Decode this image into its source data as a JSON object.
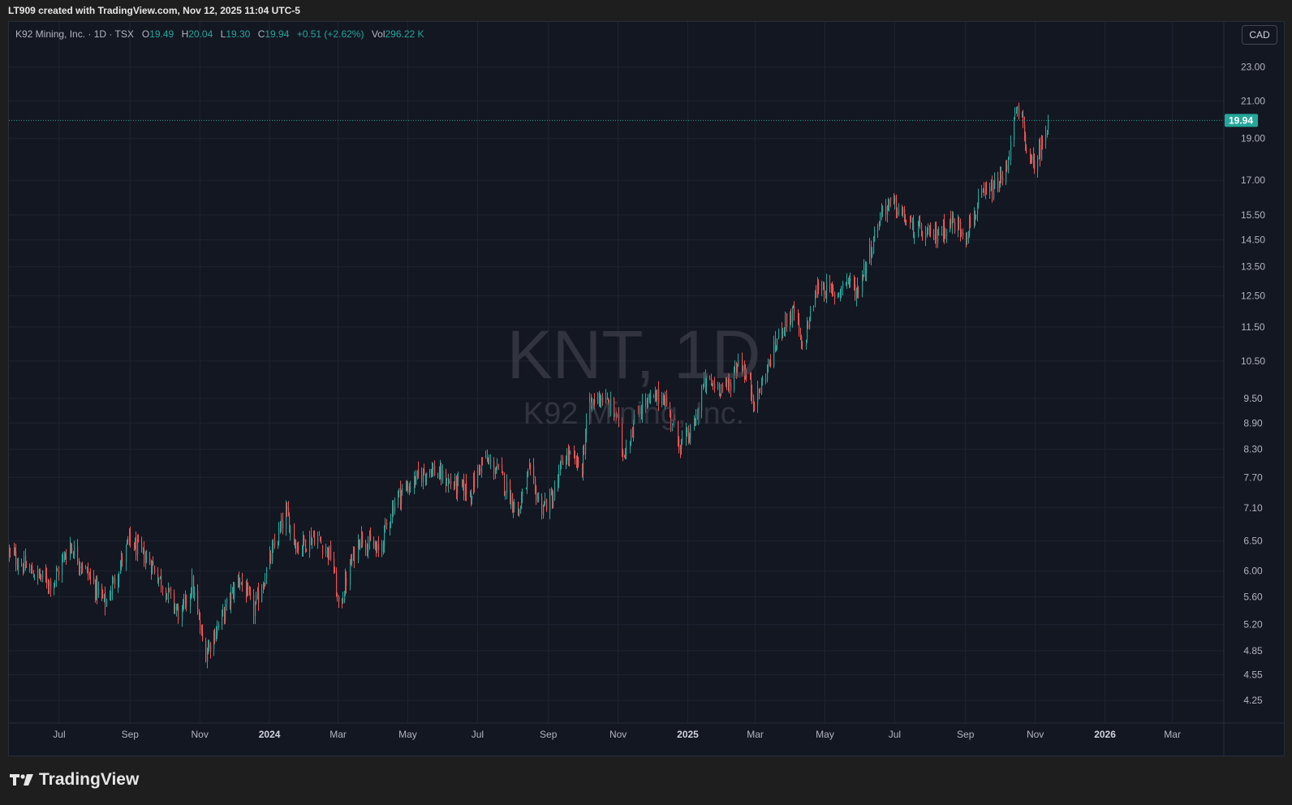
{
  "header": {
    "snapshot_line": "LT909 created with TradingView.com, Nov 12, 2025 11:04 UTC-5"
  },
  "legend": {
    "symbol_line": "K92 Mining, Inc. · 1D · TSX",
    "open_label": "O",
    "open_value": "19.49",
    "high_label": "H",
    "high_value": "20.04",
    "low_label": "L",
    "low_value": "19.30",
    "close_label": "C",
    "close_value": "19.94",
    "change": "+0.51 (+2.62%)",
    "volume_label": "Vol",
    "volume_value": "296.22 K"
  },
  "currency": "CAD",
  "watermark": {
    "main": "KNT, 1D",
    "sub": "K92 Mining, Inc."
  },
  "footer": {
    "brand": "TradingView"
  },
  "colors": {
    "up": "#26a69a",
    "down": "#ef5350",
    "background": "#131722",
    "grid": "#1f2430",
    "axis_text": "#b2b5be",
    "last_price_badge": "#26a69a"
  },
  "chart_data": {
    "type": "candlestick",
    "scale": "log",
    "y_ticks": [
      "23.00",
      "21.00",
      "19.00",
      "17.00",
      "15.50",
      "14.50",
      "13.50",
      "12.50",
      "11.50",
      "10.50",
      "9.50",
      "8.90",
      "8.30",
      "7.70",
      "7.10",
      "6.50",
      "6.00",
      "5.60",
      "5.20",
      "4.85",
      "4.55",
      "4.25"
    ],
    "x_ticks": [
      {
        "label": "Jul",
        "date": "2023-07-01"
      },
      {
        "label": "Sep",
        "date": "2023-09-01"
      },
      {
        "label": "Nov",
        "date": "2023-11-01"
      },
      {
        "label": "2024",
        "date": "2024-01-01"
      },
      {
        "label": "Mar",
        "date": "2024-03-01"
      },
      {
        "label": "May",
        "date": "2024-05-01"
      },
      {
        "label": "Jul",
        "date": "2024-07-01"
      },
      {
        "label": "Sep",
        "date": "2024-09-01"
      },
      {
        "label": "Nov",
        "date": "2024-11-01"
      },
      {
        "label": "2025",
        "date": "2025-01-01"
      },
      {
        "label": "Mar",
        "date": "2025-03-01"
      },
      {
        "label": "May",
        "date": "2025-05-01"
      },
      {
        "label": "Jul",
        "date": "2025-07-01"
      },
      {
        "label": "Sep",
        "date": "2025-09-01"
      },
      {
        "label": "Nov",
        "date": "2025-11-01"
      },
      {
        "label": "2026",
        "date": "2026-01-01"
      },
      {
        "label": "Mar",
        "date": "2026-03-01"
      }
    ],
    "last_price": "19.94",
    "x_range": [
      "2023-05-18",
      "2026-04-15"
    ],
    "y_range": [
      4.0,
      24.3
    ],
    "series_anchors": [
      {
        "date": "2023-05-18",
        "close": 6.3
      },
      {
        "date": "2023-06-05",
        "close": 6.0
      },
      {
        "date": "2023-06-25",
        "close": 5.8
      },
      {
        "date": "2023-07-10",
        "close": 6.45
      },
      {
        "date": "2023-08-10",
        "close": 5.5
      },
      {
        "date": "2023-08-31",
        "close": 6.5
      },
      {
        "date": "2023-09-20",
        "close": 6.1
      },
      {
        "date": "2023-10-15",
        "close": 5.3
      },
      {
        "date": "2023-10-25",
        "close": 5.8
      },
      {
        "date": "2023-11-05",
        "close": 4.8
      },
      {
        "date": "2023-11-20",
        "close": 5.3
      },
      {
        "date": "2023-12-05",
        "close": 5.9
      },
      {
        "date": "2023-12-18",
        "close": 5.4
      },
      {
        "date": "2024-01-05",
        "close": 6.4
      },
      {
        "date": "2024-01-15",
        "close": 7.0
      },
      {
        "date": "2024-01-25",
        "close": 6.4
      },
      {
        "date": "2024-02-10",
        "close": 6.6
      },
      {
        "date": "2024-02-25",
        "close": 6.2
      },
      {
        "date": "2024-03-01",
        "close": 5.4
      },
      {
        "date": "2024-03-10",
        "close": 6.0
      },
      {
        "date": "2024-03-20",
        "close": 6.6
      },
      {
        "date": "2024-04-05",
        "close": 6.3
      },
      {
        "date": "2024-04-20",
        "close": 7.3
      },
      {
        "date": "2024-05-05",
        "close": 7.6
      },
      {
        "date": "2024-05-20",
        "close": 7.9
      },
      {
        "date": "2024-06-05",
        "close": 7.6
      },
      {
        "date": "2024-06-25",
        "close": 7.4
      },
      {
        "date": "2024-07-05",
        "close": 8.1
      },
      {
        "date": "2024-07-20",
        "close": 7.8
      },
      {
        "date": "2024-08-05",
        "close": 7.0
      },
      {
        "date": "2024-08-15",
        "close": 7.8
      },
      {
        "date": "2024-08-25",
        "close": 7.1
      },
      {
        "date": "2024-09-05",
        "close": 7.3
      },
      {
        "date": "2024-09-15",
        "close": 8.2
      },
      {
        "date": "2024-09-30",
        "close": 7.9
      },
      {
        "date": "2024-10-05",
        "close": 9.2
      },
      {
        "date": "2024-10-15",
        "close": 9.6
      },
      {
        "date": "2024-10-30",
        "close": 9.1
      },
      {
        "date": "2024-11-05",
        "close": 8.2
      },
      {
        "date": "2024-11-20",
        "close": 9.3
      },
      {
        "date": "2024-12-10",
        "close": 9.6
      },
      {
        "date": "2024-12-25",
        "close": 8.4
      },
      {
        "date": "2025-01-05",
        "close": 8.7
      },
      {
        "date": "2025-01-15",
        "close": 9.9
      },
      {
        "date": "2025-02-05",
        "close": 9.8
      },
      {
        "date": "2025-02-15",
        "close": 10.6
      },
      {
        "date": "2025-03-01",
        "close": 9.4
      },
      {
        "date": "2025-03-10",
        "close": 10.2
      },
      {
        "date": "2025-03-25",
        "close": 11.6
      },
      {
        "date": "2025-04-05",
        "close": 12.0
      },
      {
        "date": "2025-04-10",
        "close": 10.8
      },
      {
        "date": "2025-04-25",
        "close": 12.9
      },
      {
        "date": "2025-05-10",
        "close": 12.5
      },
      {
        "date": "2025-05-20",
        "close": 13.1
      },
      {
        "date": "2025-05-28",
        "close": 12.6
      },
      {
        "date": "2025-06-10",
        "close": 14.2
      },
      {
        "date": "2025-06-20",
        "close": 15.8
      },
      {
        "date": "2025-07-01",
        "close": 15.9
      },
      {
        "date": "2025-07-15",
        "close": 15.0
      },
      {
        "date": "2025-08-01",
        "close": 14.6
      },
      {
        "date": "2025-08-20",
        "close": 15.2
      },
      {
        "date": "2025-09-01",
        "close": 14.8
      },
      {
        "date": "2025-09-15",
        "close": 16.2
      },
      {
        "date": "2025-09-25",
        "close": 16.6
      },
      {
        "date": "2025-10-05",
        "close": 17.2
      },
      {
        "date": "2025-10-15",
        "close": 20.4
      },
      {
        "date": "2025-10-20",
        "close": 19.8
      },
      {
        "date": "2025-10-28",
        "close": 17.6
      },
      {
        "date": "2025-11-05",
        "close": 18.4
      },
      {
        "date": "2025-11-12",
        "close": 19.94
      }
    ]
  }
}
